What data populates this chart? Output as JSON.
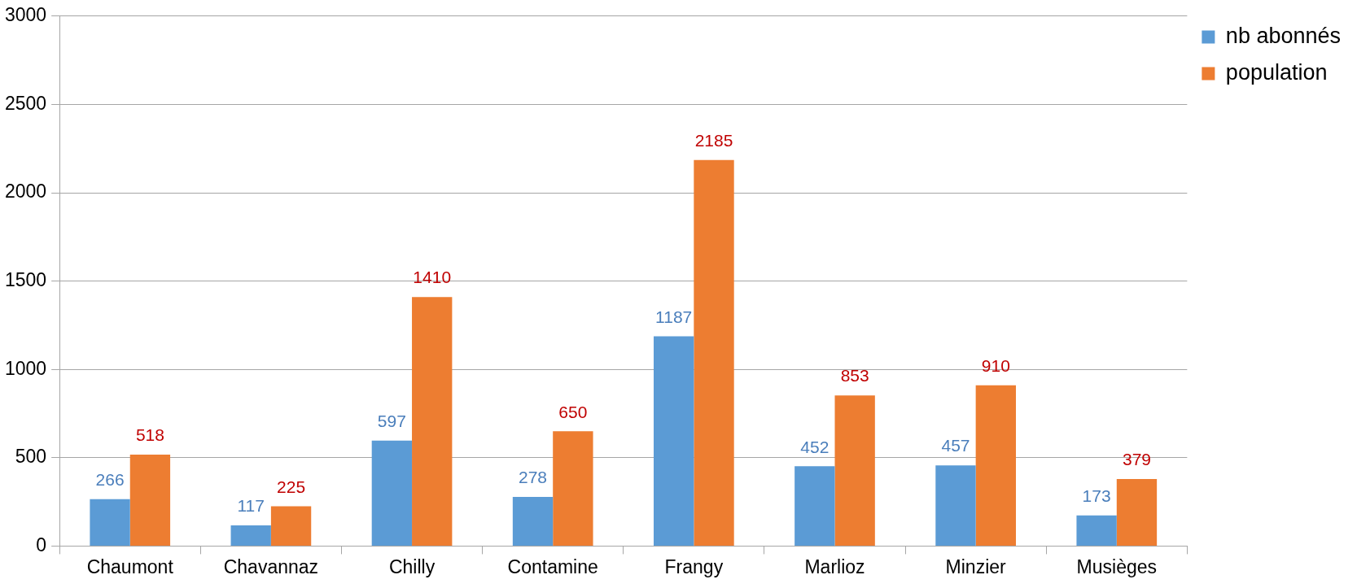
{
  "chart_data": {
    "type": "bar",
    "categories": [
      "Chaumont",
      "Chavannaz",
      "Chilly",
      "Contamine",
      "Frangy",
      "Marlioz",
      "Minzier",
      "Musièges"
    ],
    "series": [
      {
        "name": "nb abonnés",
        "color": "#5b9bd5",
        "values": [
          266,
          117,
          597,
          278,
          1187,
          452,
          457,
          173
        ]
      },
      {
        "name": "population",
        "color": "#ed7d31",
        "values": [
          518,
          225,
          1410,
          650,
          2185,
          853,
          910,
          379
        ]
      }
    ],
    "ylim": [
      0,
      3000
    ],
    "yticks": [
      0,
      500,
      1000,
      1500,
      2000,
      2500,
      3000
    ],
    "grid": "y",
    "legend": "top right",
    "data_labels": true
  }
}
